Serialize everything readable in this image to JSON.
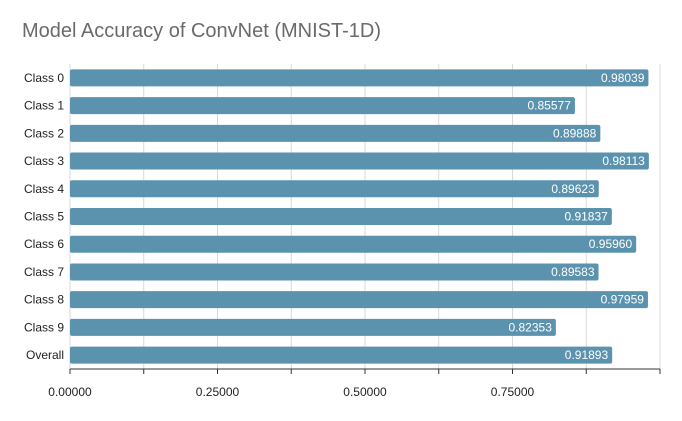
{
  "chart_data": {
    "type": "bar",
    "orientation": "horizontal",
    "title": "Model Accuracy of ConvNet (MNIST-1D)",
    "xlabel": "",
    "ylabel": "",
    "categories": [
      "Class 0",
      "Class 1",
      "Class 2",
      "Class 3",
      "Class 4",
      "Class 5",
      "Class 6",
      "Class 7",
      "Class 8",
      "Class 9",
      "Overall"
    ],
    "values": [
      0.98039,
      0.85577,
      0.89888,
      0.98113,
      0.89623,
      0.91837,
      0.9596,
      0.89583,
      0.97959,
      0.82353,
      0.91893
    ],
    "data_labels": [
      "0.98039",
      "0.85577",
      "0.89888",
      "0.98113",
      "0.89623",
      "0.91837",
      "0.95960",
      "0.89583",
      "0.97959",
      "0.82353",
      "0.91893"
    ],
    "xlim": [
      0,
      1
    ],
    "xticks": [
      0,
      0.25,
      0.5,
      0.75
    ],
    "xtick_labels": [
      "0.00000",
      "0.25000",
      "0.50000",
      "0.75000"
    ],
    "grid": true,
    "legend": "none",
    "colors": {
      "bar": "#5b93ae",
      "grid": "#d9d9d9",
      "axis": "#333333",
      "title": "#6a6a6a"
    }
  }
}
